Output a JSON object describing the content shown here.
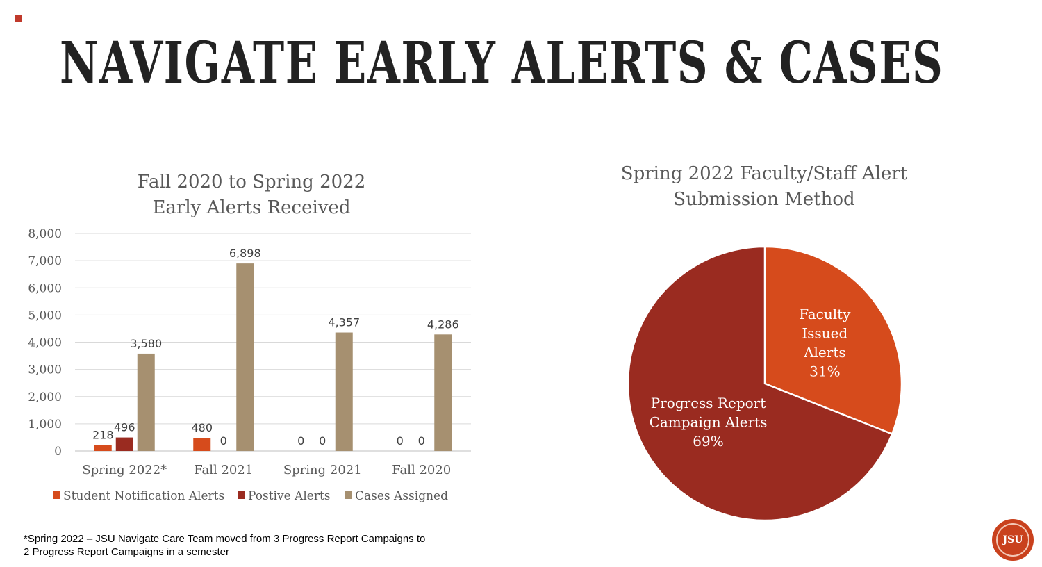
{
  "slide": {
    "title": "NAVIGATE EARLY ALERTS & CASES",
    "footnote_line1": "*Spring 2022 – JSU Navigate Care Team moved from 3 Progress Report Campaigns to",
    "footnote_line2": "2 Progress Report Campaigns in a semester",
    "logo_text": "JSU"
  },
  "colors": {
    "student_notification": "#d64b1c",
    "positive": "#9a2b20",
    "cases": "#a69070",
    "pie_faculty": "#d64b1c",
    "pie_progress": "#9a2b20"
  },
  "chart_data": [
    {
      "type": "bar",
      "title_line1": "Fall 2020 to Spring 2022",
      "title_line2": "Early Alerts Received",
      "categories": [
        "Spring 2022*",
        "Fall 2021",
        "Spring 2021",
        "Fall 2020"
      ],
      "series": [
        {
          "name": "Student Notification Alerts",
          "values": [
            218,
            480,
            0,
            0
          ],
          "labels": [
            "218",
            "480",
            "0",
            "0"
          ],
          "color": "#d64b1c"
        },
        {
          "name": "Postive Alerts",
          "values": [
            496,
            0,
            0,
            0
          ],
          "labels": [
            "496",
            "0",
            "0",
            "0"
          ],
          "color": "#9a2b20"
        },
        {
          "name": "Cases Assigned",
          "values": [
            3580,
            6898,
            4357,
            4286
          ],
          "labels": [
            "3,580",
            "6,898",
            "4,357",
            "4,286"
          ],
          "color": "#a69070"
        }
      ],
      "ylim": [
        0,
        8000
      ],
      "yticks": [
        0,
        1000,
        2000,
        3000,
        4000,
        5000,
        6000,
        7000,
        8000
      ],
      "ytick_labels": [
        "0",
        "1,000",
        "2,000",
        "3,000",
        "4,000",
        "5,000",
        "6,000",
        "7,000",
        "8,000"
      ],
      "grid": true,
      "legend_position": "bottom"
    },
    {
      "type": "pie",
      "title_line1": "Spring 2022 Faculty/Staff Alert",
      "title_line2": "Submission Method",
      "slices": [
        {
          "label_lines": [
            "Faculty",
            "Issued",
            "Alerts"
          ],
          "percent_label": "31%",
          "value": 31,
          "color": "#d64b1c"
        },
        {
          "label_lines": [
            "Progress Report",
            "Campaign Alerts"
          ],
          "percent_label": "69%",
          "value": 69,
          "color": "#9a2b20"
        }
      ]
    }
  ]
}
